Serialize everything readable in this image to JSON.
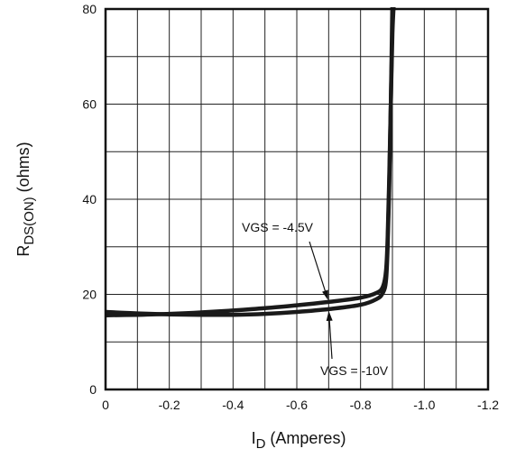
{
  "chart_data": {
    "type": "line",
    "title": "",
    "xlabel": {
      "main": "I",
      "sub": "D",
      "rest": " (Amperes)"
    },
    "ylabel": {
      "main": "R",
      "sub": "DS(ON)",
      "rest": " (ohms)"
    },
    "xlim": [
      0,
      -1.2
    ],
    "ylim": [
      0,
      80
    ],
    "x_ticks": [
      0,
      -0.2,
      -0.4,
      -0.6,
      -0.8,
      -1.0,
      -1.2
    ],
    "x_tick_labels": [
      "0",
      "-0.2",
      "-0.4",
      "-0.6",
      "-0.8",
      "-1.0",
      "-1.2"
    ],
    "y_ticks": [
      0,
      20,
      40,
      60,
      80
    ],
    "y_tick_labels": [
      "0",
      "20",
      "40",
      "60",
      "80"
    ],
    "minor_grid_x": [
      -0.1,
      -0.3,
      -0.5,
      -0.7,
      -0.9,
      -1.1
    ],
    "minor_grid_y": [
      10,
      30,
      50,
      70
    ],
    "grid": true,
    "series": [
      {
        "name": "VGS = -4.5V",
        "x": [
          0,
          -0.1,
          -0.2,
          -0.3,
          -0.4,
          -0.5,
          -0.6,
          -0.7,
          -0.8,
          -0.85,
          -0.87,
          -0.88,
          -0.885,
          -0.89,
          -0.895,
          -0.9,
          -0.905
        ],
        "y": [
          15.6,
          15.7,
          15.9,
          16.2,
          16.6,
          17.1,
          17.7,
          18.4,
          19.3,
          20.3,
          21.6,
          25,
          32,
          45,
          60,
          75,
          82
        ]
      },
      {
        "name": "VGS = -10V",
        "x": [
          0,
          -0.1,
          -0.2,
          -0.3,
          -0.4,
          -0.5,
          -0.6,
          -0.7,
          -0.8,
          -0.85,
          -0.87,
          -0.88,
          -0.885,
          -0.89,
          -0.895,
          -0.9
        ],
        "y": [
          16.3,
          16.0,
          15.8,
          15.7,
          15.7,
          15.9,
          16.3,
          16.9,
          17.8,
          19.0,
          20.3,
          23,
          30,
          43,
          60,
          82
        ]
      }
    ],
    "annotations": [
      {
        "text": "VGS = -4.5V",
        "series": 0,
        "arrow_to": [
          -0.7,
          18.4
        ]
      },
      {
        "text": "VGS = -10V",
        "series": 1,
        "arrow_to": [
          -0.7,
          16.9
        ]
      }
    ]
  }
}
